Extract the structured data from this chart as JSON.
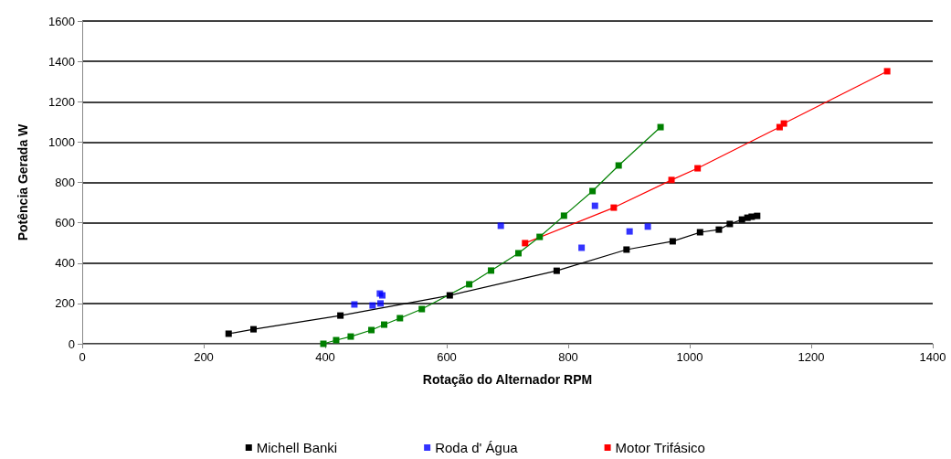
{
  "chart_data": {
    "type": "line",
    "xlabel": "Rotação do Alternador RPM",
    "ylabel": "Potência Gerada W",
    "xlim": [
      0,
      1400
    ],
    "xticks": [
      0,
      200,
      400,
      600,
      800,
      1000,
      1200,
      1400
    ],
    "ylim": [
      0,
      1600
    ],
    "yticks": [
      0,
      200,
      400,
      600,
      800,
      1000,
      1200,
      1400,
      1600
    ],
    "grid": "y",
    "legend": "bottom",
    "marker": "square",
    "line_style": "solid",
    "series": [
      {
        "name": "Michell Banki",
        "color": "#000000",
        "type": "line",
        "x": [
          241,
          282,
          425,
          605,
          781,
          896,
          972,
          1017,
          1048,
          1066,
          1086,
          1095,
          1102,
          1111
        ],
        "values": [
          50,
          72,
          140,
          240,
          362,
          467,
          508,
          553,
          566,
          594,
          616,
          625,
          630,
          634
        ]
      },
      {
        "name": "Roda d' Água",
        "color": "#0000ff",
        "type": "scatter",
        "x": [
          448,
          478,
          490,
          494,
          491,
          689,
          822,
          844,
          901,
          931
        ],
        "values": [
          195,
          190,
          249,
          240,
          200,
          585,
          476,
          684,
          557,
          581
        ]
      },
      {
        "name": "Motor Trifásico",
        "color": "#ff0000",
        "type": "line",
        "x": [
          729,
          875,
          970,
          1013,
          1148,
          1155,
          1325
        ],
        "values": [
          499,
          675,
          812,
          870,
          1074,
          1092,
          1351
        ]
      },
      {
        "color": "#008000",
        "type": "line",
        "x": [
          397,
          418,
          442,
          476,
          497,
          523,
          559,
          637,
          673,
          718,
          753,
          793,
          840,
          883,
          952
        ],
        "values": [
          0,
          18,
          36,
          68,
          95,
          127,
          172,
          295,
          363,
          449,
          530,
          635,
          757,
          884,
          1074
        ]
      }
    ]
  }
}
